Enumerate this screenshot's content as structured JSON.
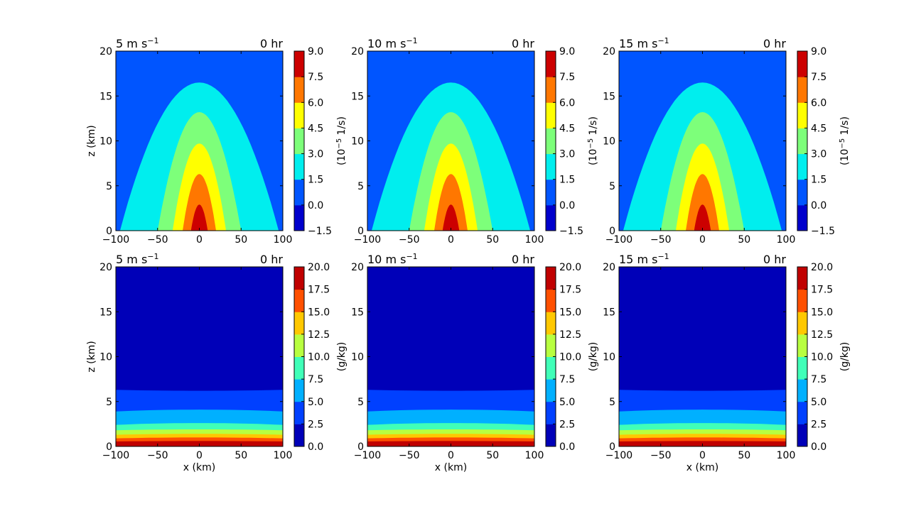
{
  "figure": {
    "panels": [
      {
        "id": "vort-5",
        "row": 0,
        "col": 0,
        "title_left": "5 m s",
        "title_sup": "−1",
        "title_right": "0 hr",
        "ylabel": "z (km)",
        "xlabel": "",
        "colorbar": "vort"
      },
      {
        "id": "vort-10",
        "row": 0,
        "col": 1,
        "title_left": "10 m s",
        "title_sup": "−1",
        "title_right": "0 hr",
        "ylabel": "",
        "xlabel": "",
        "colorbar": "vort"
      },
      {
        "id": "vort-15",
        "row": 0,
        "col": 2,
        "title_left": "15 m s",
        "title_sup": "−1",
        "title_right": "0 hr",
        "ylabel": "",
        "xlabel": "",
        "colorbar": "vort"
      },
      {
        "id": "qv-5",
        "row": 1,
        "col": 0,
        "title_left": "5 m s",
        "title_sup": "−1",
        "title_right": "0 hr",
        "ylabel": "z (km)",
        "xlabel": "x (km)",
        "colorbar": "qv"
      },
      {
        "id": "qv-10",
        "row": 1,
        "col": 1,
        "title_left": "10 m s",
        "title_sup": "−1",
        "title_right": "0 hr",
        "ylabel": "",
        "xlabel": "x (km)",
        "colorbar": "qv"
      },
      {
        "id": "qv-15",
        "row": 1,
        "col": 2,
        "title_left": "15 m s",
        "title_sup": "−1",
        "title_right": "0 hr",
        "ylabel": "",
        "xlabel": "x (km)",
        "colorbar": "qv"
      }
    ]
  },
  "chart_data": {
    "type": "heatmap",
    "subtype": "filled-contour",
    "x_ticks": [
      "−100",
      "−50",
      "0",
      "50",
      "100"
    ],
    "y_ticks": [
      "0",
      "5",
      "10",
      "15",
      "20"
    ],
    "xlim": [
      -100,
      100
    ],
    "ylim": [
      0,
      20
    ],
    "colorbars": {
      "vort": {
        "label_prefix": "(10",
        "label_sup": "−5",
        "label_suffix": " 1/s)",
        "levels": [
          -1.5,
          0.0,
          1.5,
          3.0,
          4.5,
          6.0,
          7.5,
          9.0
        ],
        "tick_labels": [
          "−1.5",
          "0.0",
          "1.5",
          "3.0",
          "4.5",
          "6.0",
          "7.5",
          "9.0"
        ],
        "colors": [
          "#0000cc",
          "#0055ff",
          "#00eeee",
          "#7dff7a",
          "#ffff00",
          "#ff7700",
          "#cc0000"
        ]
      },
      "qv": {
        "label": "(g/kg)",
        "levels": [
          0.0,
          2.5,
          5.0,
          7.5,
          10.0,
          12.5,
          15.0,
          17.5,
          20.0
        ],
        "tick_labels": [
          "0.0",
          "2.5",
          "5.0",
          "7.5",
          "10.0",
          "12.5",
          "15.0",
          "17.5",
          "20.0"
        ],
        "colors": [
          "#0000b8",
          "#0040ff",
          "#00b0ff",
          "#40ffb8",
          "#b8ff40",
          "#ffc800",
          "#ff5000",
          "#c00000"
        ]
      }
    },
    "vort_field": {
      "description_free": true,
      "contour_heights_at_center_km": [
        16.5,
        13.2,
        9.7,
        6.3,
        2.9
      ],
      "contour_halfwidths_at_surface_km": [
        95,
        50,
        32,
        20,
        10
      ],
      "background_band_index": 1
    },
    "qv_field": {
      "band_tops_at_center_km": [
        6.2,
        4.1,
        2.6,
        1.9,
        1.4,
        1.0,
        0.6
      ],
      "band_tops_at_edges_km": [
        6.3,
        3.9,
        2.4,
        1.8,
        1.3,
        0.9,
        0.55
      ]
    }
  }
}
